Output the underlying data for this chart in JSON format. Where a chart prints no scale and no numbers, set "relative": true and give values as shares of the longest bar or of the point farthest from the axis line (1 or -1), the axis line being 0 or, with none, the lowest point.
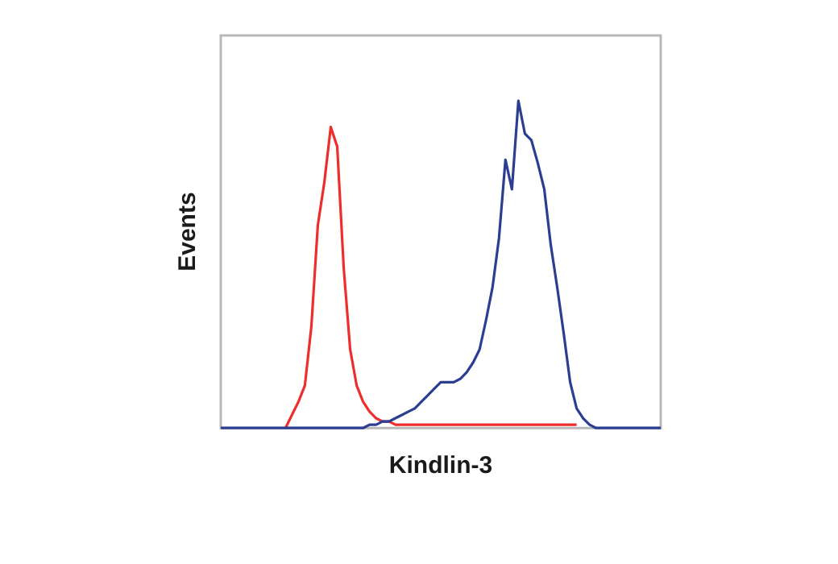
{
  "chart_data": {
    "type": "line",
    "xlabel": "Kindlin-3",
    "ylabel": "Events",
    "relative": true,
    "marker": "none",
    "categories": [
      null,
      null,
      null,
      null,
      null,
      null,
      null,
      null,
      null,
      null,
      null,
      null,
      null,
      null,
      null,
      null,
      null,
      null,
      null,
      null,
      null,
      null,
      null,
      null,
      null,
      null,
      null,
      null,
      null,
      null,
      null,
      null,
      null,
      null,
      null,
      null,
      null,
      null,
      null,
      null,
      null,
      null,
      null,
      null,
      null,
      null,
      null,
      null,
      null,
      null,
      null,
      null,
      null,
      null,
      null,
      null,
      null,
      null,
      null,
      null,
      null,
      null,
      null,
      null,
      null,
      null,
      null,
      null,
      null
    ],
    "series": [
      {
        "color": "#ee2d2d",
        "values": [
          null,
          null,
          null,
          null,
          null,
          null,
          null,
          null,
          null,
          null,
          0,
          0.04,
          0.08,
          0.13,
          0.31,
          0.62,
          0.75,
          0.92,
          0.86,
          0.49,
          0.24,
          0.13,
          0.08,
          0.05,
          0.03,
          0.02,
          0.02,
          0.01,
          0.01,
          0.01,
          0.01,
          0.01,
          0.01,
          0.01,
          0.01,
          0.01,
          0.01,
          0.01,
          0.01,
          0.01,
          0.01,
          0.01,
          0.01,
          0.01,
          0.01,
          0.01,
          0.01,
          0.01,
          0.01,
          0.01,
          0.01,
          0.01,
          0.01,
          0.01,
          0.01,
          0.01,
          null,
          null,
          null,
          null,
          null,
          null,
          null,
          null,
          null,
          null,
          null,
          null,
          null
        ]
      },
      {
        "color": "#2c3e92",
        "values": [
          0,
          0,
          0,
          0,
          0,
          0,
          0,
          0,
          0,
          0,
          0,
          0,
          0,
          0,
          0,
          0,
          0,
          0,
          0,
          0,
          0,
          0,
          0,
          0.01,
          0.01,
          0.02,
          0.02,
          0.03,
          0.04,
          0.05,
          0.06,
          0.08,
          0.1,
          0.12,
          0.14,
          0.14,
          0.14,
          0.15,
          0.17,
          0.2,
          0.24,
          0.33,
          0.43,
          0.58,
          0.82,
          0.73,
          1,
          0.9,
          0.88,
          0.81,
          0.73,
          0.56,
          0.43,
          0.29,
          0.14,
          0.06,
          0.03,
          0.01,
          0,
          0,
          0,
          0,
          0,
          0,
          0,
          0,
          0,
          0,
          0
        ]
      }
    ]
  }
}
